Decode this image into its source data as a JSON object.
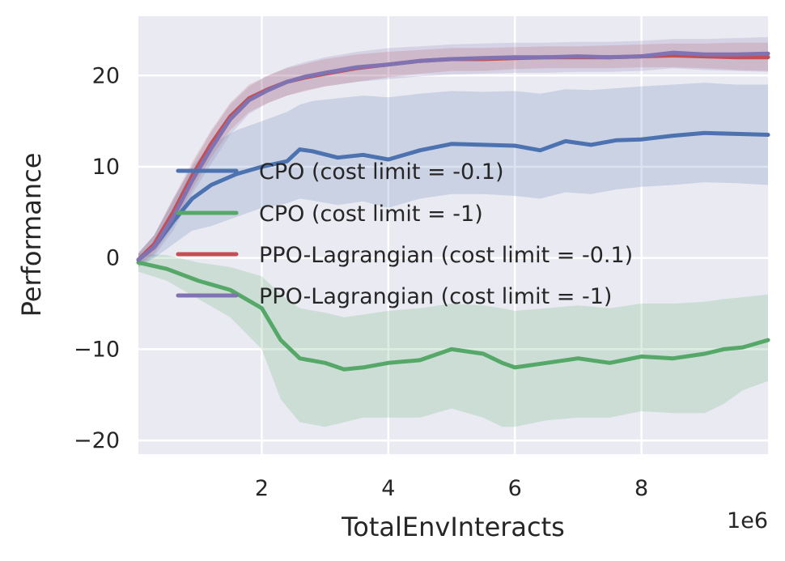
{
  "chart_data": {
    "type": "line",
    "xlabel": "TotalEnvInteracts",
    "ylabel": "Performance",
    "x_offset_label": "1e6",
    "xlim": [
      0.05,
      10.0
    ],
    "ylim": [
      -21.5,
      26.5
    ],
    "xticks": [
      2,
      4,
      6,
      8
    ],
    "xtick_labels": [
      "2",
      "4",
      "6",
      "8"
    ],
    "yticks": [
      -20,
      -10,
      0,
      10,
      20
    ],
    "ytick_labels": [
      "−20",
      "−10",
      "0",
      "10",
      "20"
    ],
    "grid": true,
    "legend_position": "center-left",
    "series": [
      {
        "name": "CPO (cost limit = -0.1)",
        "color": "#4c72b0",
        "x": [
          0.05,
          0.3,
          0.6,
          0.9,
          1.2,
          1.6,
          2.0,
          2.4,
          2.6,
          2.8,
          3.2,
          3.6,
          4.0,
          4.5,
          5.0,
          5.5,
          6.0,
          6.4,
          6.8,
          7.2,
          7.6,
          8.0,
          8.5,
          9.0,
          9.5,
          10.0
        ],
        "mean": [
          -0.2,
          1.2,
          4.0,
          6.5,
          8.0,
          9.2,
          10.0,
          10.6,
          11.9,
          11.7,
          11.0,
          11.3,
          10.8,
          11.8,
          12.5,
          12.4,
          12.3,
          11.8,
          12.8,
          12.4,
          12.9,
          13.0,
          13.4,
          13.7,
          13.6,
          13.5
        ],
        "upper": [
          0.5,
          2.5,
          6.5,
          10.0,
          12.5,
          14.0,
          15.0,
          16.0,
          16.8,
          17.2,
          17.5,
          17.8,
          17.6,
          18.0,
          18.3,
          18.2,
          18.3,
          18.0,
          18.5,
          18.4,
          18.6,
          18.8,
          19.0,
          19.2,
          19.0,
          19.0
        ],
        "lower": [
          -1.0,
          0.0,
          1.5,
          3.0,
          3.5,
          4.5,
          5.5,
          6.0,
          6.5,
          6.3,
          5.8,
          6.2,
          5.5,
          6.5,
          7.0,
          7.0,
          6.8,
          6.5,
          7.2,
          7.0,
          7.5,
          7.8,
          8.0,
          8.3,
          8.2,
          8.0
        ]
      },
      {
        "name": "CPO (cost limit = -1)",
        "color": "#55a868",
        "x": [
          0.05,
          0.5,
          1.0,
          1.5,
          2.0,
          2.3,
          2.6,
          3.0,
          3.3,
          3.6,
          4.0,
          4.5,
          5.0,
          5.5,
          5.8,
          6.0,
          6.5,
          7.0,
          7.5,
          8.0,
          8.5,
          9.0,
          9.3,
          9.6,
          10.0
        ],
        "mean": [
          -0.5,
          -1.2,
          -2.5,
          -3.5,
          -5.5,
          -9.0,
          -11.0,
          -11.5,
          -12.2,
          -12.0,
          -11.5,
          -11.2,
          -10.0,
          -10.5,
          -11.5,
          -12.0,
          -11.5,
          -11.0,
          -11.5,
          -10.8,
          -11.0,
          -10.5,
          -10.0,
          -9.8,
          -9.0
        ],
        "upper": [
          0.5,
          0.3,
          -0.5,
          -1.0,
          -2.0,
          -4.0,
          -5.5,
          -6.0,
          -6.5,
          -6.2,
          -5.8,
          -5.5,
          -5.0,
          -5.2,
          -5.5,
          -5.8,
          -5.5,
          -5.2,
          -5.5,
          -5.0,
          -5.0,
          -4.8,
          -4.5,
          -4.3,
          -4.0
        ],
        "lower": [
          -1.5,
          -2.5,
          -4.5,
          -6.5,
          -10.0,
          -15.5,
          -18.0,
          -18.5,
          -18.0,
          -17.5,
          -17.5,
          -17.5,
          -16.5,
          -17.5,
          -18.5,
          -18.5,
          -17.8,
          -17.5,
          -17.5,
          -16.8,
          -17.0,
          -17.0,
          -16.0,
          -14.5,
          -13.5
        ]
      },
      {
        "name": "PPO-Lagrangian (cost limit = -0.1)",
        "color": "#c44e52",
        "x": [
          0.05,
          0.3,
          0.6,
          0.9,
          1.2,
          1.5,
          1.8,
          2.1,
          2.4,
          2.7,
          3.0,
          3.5,
          4.0,
          4.5,
          5.0,
          5.5,
          6.0,
          6.5,
          7.0,
          7.5,
          8.0,
          8.5,
          9.0,
          9.5,
          10.0
        ],
        "mean": [
          -0.2,
          1.5,
          5.0,
          9.0,
          12.5,
          15.5,
          17.5,
          18.5,
          19.3,
          19.8,
          20.2,
          20.8,
          21.2,
          21.6,
          21.8,
          21.8,
          21.9,
          22.0,
          22.0,
          22.0,
          22.1,
          22.2,
          22.1,
          22.0,
          22.0
        ],
        "upper": [
          0.5,
          2.5,
          6.5,
          10.5,
          14.0,
          17.0,
          19.0,
          20.0,
          20.8,
          21.3,
          21.8,
          22.3,
          22.6,
          22.8,
          23.0,
          23.0,
          23.1,
          23.2,
          23.2,
          23.3,
          23.4,
          23.5,
          23.5,
          23.6,
          23.6
        ],
        "lower": [
          -0.8,
          0.5,
          3.5,
          7.5,
          11.0,
          14.0,
          16.0,
          17.0,
          17.8,
          18.3,
          18.8,
          19.3,
          19.8,
          20.2,
          20.5,
          20.5,
          20.7,
          20.8,
          20.8,
          20.8,
          20.9,
          20.9,
          20.8,
          20.6,
          20.5
        ]
      },
      {
        "name": "PPO-Lagrangian (cost limit = -1)",
        "color": "#8172b2",
        "x": [
          0.05,
          0.3,
          0.6,
          0.9,
          1.2,
          1.5,
          1.8,
          2.1,
          2.4,
          2.7,
          3.0,
          3.5,
          4.0,
          4.5,
          5.0,
          5.5,
          6.0,
          6.5,
          7.0,
          7.5,
          8.0,
          8.5,
          9.0,
          9.5,
          10.0
        ],
        "mean": [
          -0.2,
          1.2,
          4.5,
          8.5,
          12.0,
          15.2,
          17.3,
          18.4,
          19.3,
          19.9,
          20.3,
          20.9,
          21.2,
          21.6,
          21.8,
          21.9,
          22.0,
          22.0,
          22.1,
          22.0,
          22.1,
          22.5,
          22.3,
          22.3,
          22.4
        ],
        "upper": [
          0.6,
          2.5,
          6.2,
          10.2,
          13.8,
          16.8,
          18.8,
          20.0,
          20.9,
          21.5,
          22.0,
          22.6,
          23.0,
          23.2,
          23.4,
          23.5,
          23.6,
          23.6,
          23.7,
          23.7,
          23.8,
          24.0,
          24.0,
          24.1,
          24.2
        ],
        "lower": [
          -0.9,
          0.2,
          3.0,
          7.0,
          10.3,
          13.5,
          15.8,
          17.0,
          17.8,
          18.4,
          18.8,
          19.3,
          19.6,
          19.9,
          20.1,
          20.2,
          20.3,
          20.3,
          20.4,
          20.4,
          20.5,
          20.8,
          20.6,
          20.5,
          20.4
        ]
      }
    ]
  }
}
